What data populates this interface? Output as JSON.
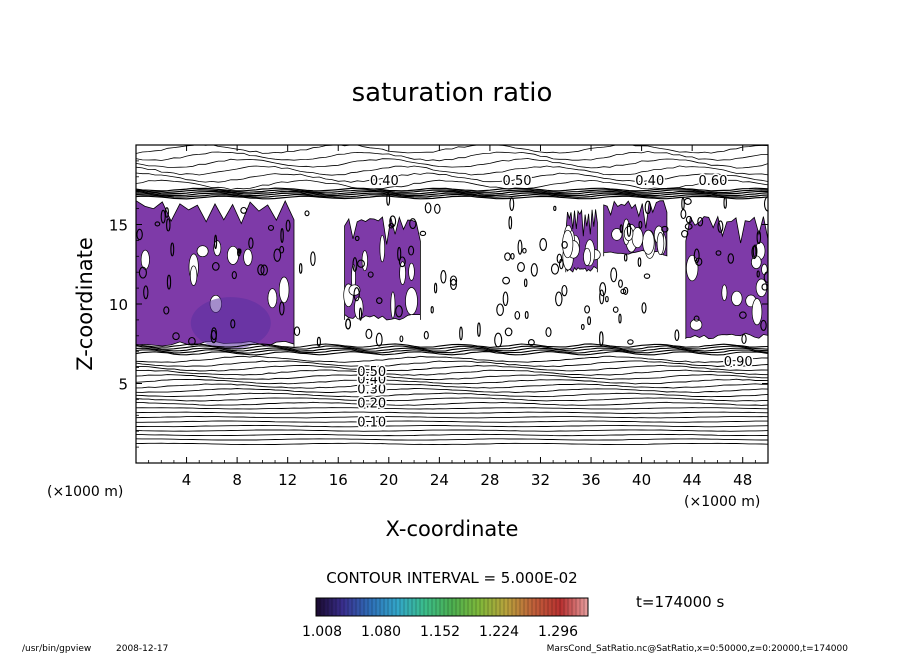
{
  "chart_data": {
    "type": "contour",
    "title": "saturation ratio",
    "xlabel": "X-coordinate",
    "ylabel": "Z-coordinate",
    "x_unit": "(×1000 m)",
    "z_unit": "(×1000 m)",
    "xlim": [
      0,
      50
    ],
    "ylim": [
      0,
      20
    ],
    "x_ticks": [
      4,
      8,
      12,
      16,
      20,
      24,
      28,
      32,
      36,
      40,
      44,
      48
    ],
    "y_ticks": [
      5,
      10,
      15
    ],
    "contour_interval_text": "CONTOUR INTERVAL = 5.000E-02",
    "time_text": "t=174000 s",
    "contour_labels_lower": [
      "0.10",
      "0.20",
      "0.30",
      "0.40",
      "0.50",
      "0.90"
    ],
    "contour_labels_upper": [
      "0.40",
      "0.40",
      "0.50",
      "0.60"
    ],
    "shaded_regions_description": "supersaturated cloud regions (ratio > 1.008) between z≈7 and z≈17",
    "shaded_regions": [
      {
        "x": [
          0,
          12.5
        ],
        "z": [
          7.3,
          16.5
        ]
      },
      {
        "x": [
          16.5,
          22.5
        ],
        "z": [
          9.0,
          15.5
        ]
      },
      {
        "x": [
          34,
          36.5
        ],
        "z": [
          12,
          16
        ]
      },
      {
        "x": [
          37,
          42
        ],
        "z": [
          13,
          16.5
        ]
      },
      {
        "x": [
          43.5,
          50
        ],
        "z": [
          7.8,
          15.5
        ]
      }
    ],
    "colorbar": {
      "tick_labels": [
        "1.008",
        "1.080",
        "1.152",
        "1.224",
        "1.296"
      ],
      "colors": [
        "#1a0a2e",
        "#3a2f8f",
        "#2e6fb8",
        "#33a6c9",
        "#3bbd8a",
        "#4caf50",
        "#7fb83a",
        "#b8a23c",
        "#c0603a",
        "#b83030",
        "#e8a0a0"
      ]
    },
    "fill_color": "#7e3aa8",
    "fill_color_dark": "#5a2fa0"
  },
  "footer": {
    "left_program": "/usr/bin/gpview",
    "left_date": "2008-12-17",
    "right_source": "MarsCond_SatRatio.nc@SatRatio,x=0:50000,z=0:20000,t=174000"
  }
}
